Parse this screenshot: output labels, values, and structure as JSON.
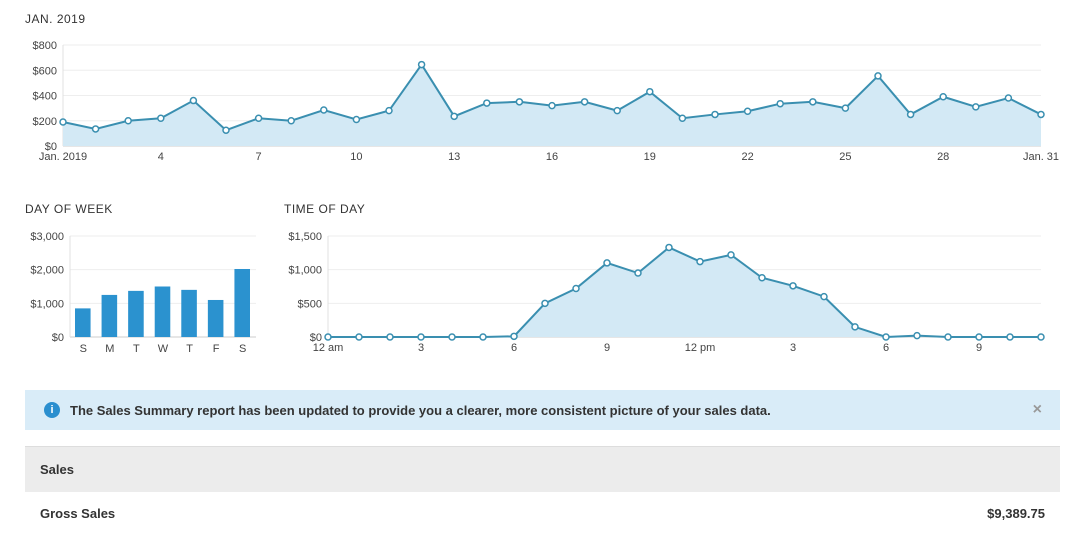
{
  "chart_data": [
    {
      "type": "line",
      "title": "JAN. 2019",
      "x": [
        1,
        2,
        3,
        4,
        5,
        6,
        7,
        8,
        9,
        10,
        11,
        12,
        13,
        14,
        15,
        16,
        17,
        18,
        19,
        20,
        21,
        22,
        23,
        24,
        25,
        26,
        27,
        28,
        29,
        30,
        31
      ],
      "values": [
        190,
        135,
        200,
        220,
        360,
        125,
        220,
        200,
        285,
        210,
        280,
        645,
        235,
        340,
        350,
        320,
        350,
        280,
        430,
        220,
        250,
        275,
        335,
        350,
        300,
        555,
        250,
        390,
        310,
        380,
        250
      ],
      "xticks": [
        {
          "v": 1,
          "l": "Jan. 2019"
        },
        {
          "v": 4,
          "l": "4"
        },
        {
          "v": 7,
          "l": "7"
        },
        {
          "v": 10,
          "l": "10"
        },
        {
          "v": 13,
          "l": "13"
        },
        {
          "v": 16,
          "l": "16"
        },
        {
          "v": 19,
          "l": "19"
        },
        {
          "v": 22,
          "l": "22"
        },
        {
          "v": 25,
          "l": "25"
        },
        {
          "v": 28,
          "l": "28"
        },
        {
          "v": 31,
          "l": "Jan. 31"
        }
      ],
      "yticks": [
        "$0",
        "$200",
        "$400",
        "$600",
        "$800"
      ],
      "ylim": [
        0,
        800
      ]
    },
    {
      "type": "bar",
      "title": "DAY OF WEEK",
      "categories": [
        "S",
        "M",
        "T",
        "W",
        "T",
        "F",
        "S"
      ],
      "values": [
        850,
        1250,
        1370,
        1500,
        1400,
        1100,
        2020
      ],
      "yticks": [
        "$0",
        "$1,000",
        "$2,000",
        "$3,000"
      ],
      "ylim": [
        0,
        3000
      ]
    },
    {
      "type": "line",
      "title": "TIME OF DAY",
      "x": [
        0,
        1,
        2,
        3,
        4,
        5,
        6,
        7,
        8,
        9,
        10,
        11,
        12,
        13,
        14,
        15,
        16,
        17,
        18,
        19,
        20,
        21,
        22,
        23
      ],
      "values": [
        0,
        0,
        0,
        0,
        0,
        0,
        10,
        500,
        720,
        1100,
        950,
        1330,
        1120,
        1220,
        880,
        760,
        600,
        150,
        0,
        20,
        0,
        0,
        0,
        0
      ],
      "xticks": [
        {
          "v": 0,
          "l": "12 am"
        },
        {
          "v": 3,
          "l": "3"
        },
        {
          "v": 6,
          "l": "6"
        },
        {
          "v": 9,
          "l": "9"
        },
        {
          "v": 12,
          "l": "12 pm"
        },
        {
          "v": 15,
          "l": "3"
        },
        {
          "v": 18,
          "l": "6"
        },
        {
          "v": 21,
          "l": "9"
        }
      ],
      "yticks": [
        "$0",
        "$500",
        "$1,000",
        "$1,500"
      ],
      "ylim": [
        0,
        1500
      ]
    }
  ],
  "banner": {
    "text": "The Sales Summary report has been updated to provide you a clearer, more consistent picture of your sales data.",
    "close": "×",
    "icon": "i"
  },
  "table": {
    "header": "Sales",
    "rows": [
      {
        "label": "Gross Sales",
        "value": "$9,389.75"
      }
    ]
  },
  "colors": {
    "line": "#3a8fb0",
    "fill": "#d3e9f5",
    "bar": "#2b92cf"
  }
}
